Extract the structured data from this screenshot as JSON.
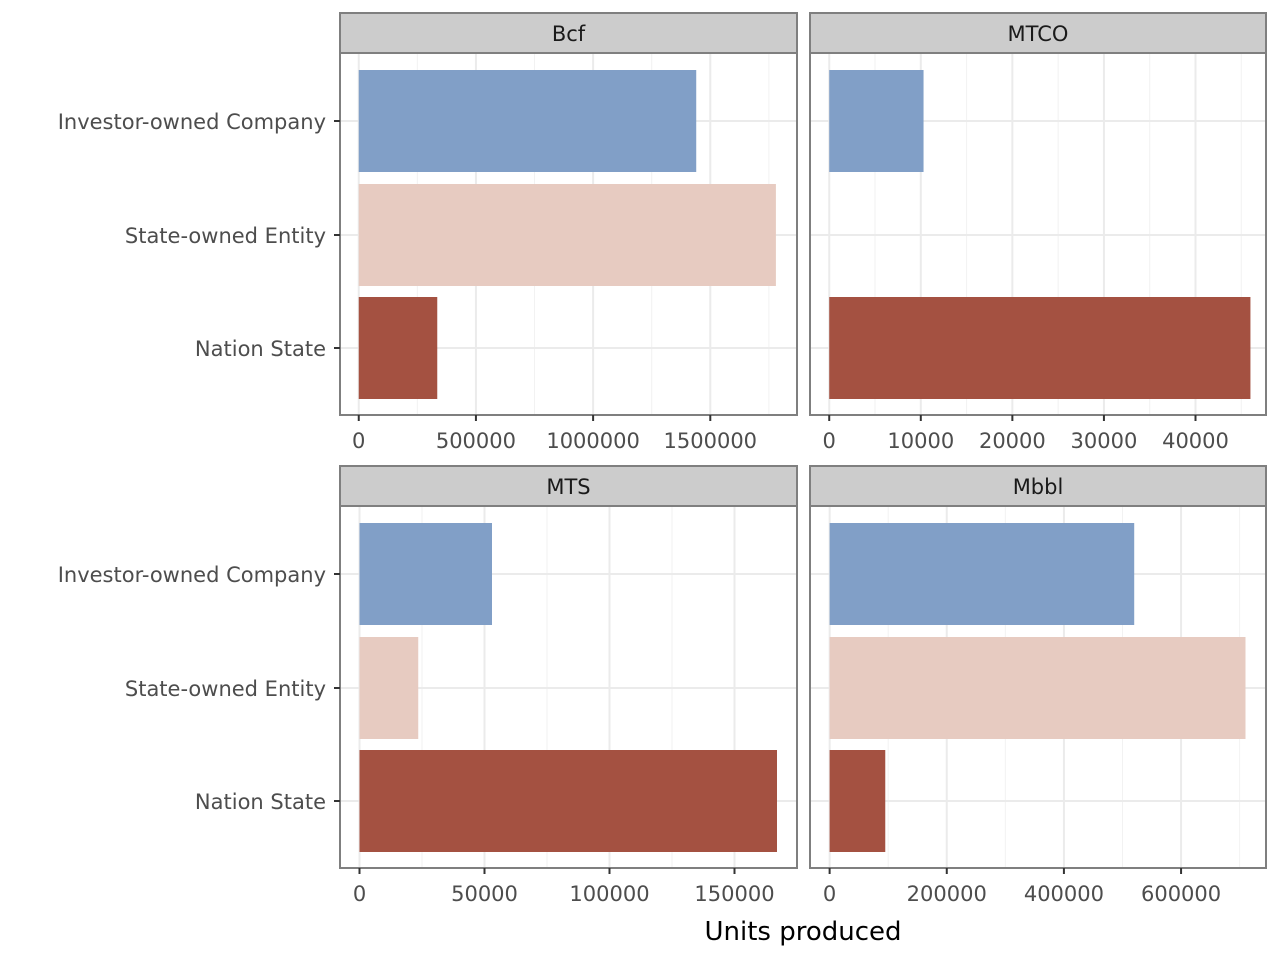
{
  "chart_data": {
    "type": "bar",
    "orientation": "horizontal",
    "xlabel": "Units produced",
    "ylabel": "",
    "categories": [
      "Investor-owned Company",
      "State-owned Entity",
      "Nation State"
    ],
    "colors": {
      "Investor-owned Company": "#819fc7",
      "State-owned Entity": "#e7cbc1",
      "Nation State": "#a45141"
    },
    "grid": true,
    "legend": "none",
    "panels": [
      {
        "name": "Bcf",
        "xlim": [
          -80000,
          1870000
        ],
        "xticks": [
          0,
          500000,
          1000000,
          1500000
        ],
        "xtick_labels": [
          "0",
          "500000",
          "1000000",
          "1500000"
        ],
        "values": [
          1440000,
          1780000,
          335000
        ]
      },
      {
        "name": "MTCO",
        "xlim": [
          -2100,
          47700
        ],
        "xticks": [
          0,
          10000,
          20000,
          30000,
          40000
        ],
        "xtick_labels": [
          "0",
          "10000",
          "20000",
          "30000",
          "40000"
        ],
        "values": [
          10300,
          null,
          46000
        ]
      },
      {
        "name": "MTS",
        "xlim": [
          -7800,
          175000
        ],
        "xticks": [
          0,
          50000,
          100000,
          150000
        ],
        "xtick_labels": [
          "0",
          "50000",
          "100000",
          "150000"
        ],
        "values": [
          53000,
          23500,
          167000
        ]
      },
      {
        "name": "Mbbl",
        "xlim": [
          -33500,
          745000
        ],
        "xticks": [
          0,
          200000,
          400000,
          600000
        ],
        "xtick_labels": [
          "0",
          "200000",
          "400000",
          "600000"
        ],
        "values": [
          520000,
          710000,
          95000
        ]
      }
    ]
  }
}
